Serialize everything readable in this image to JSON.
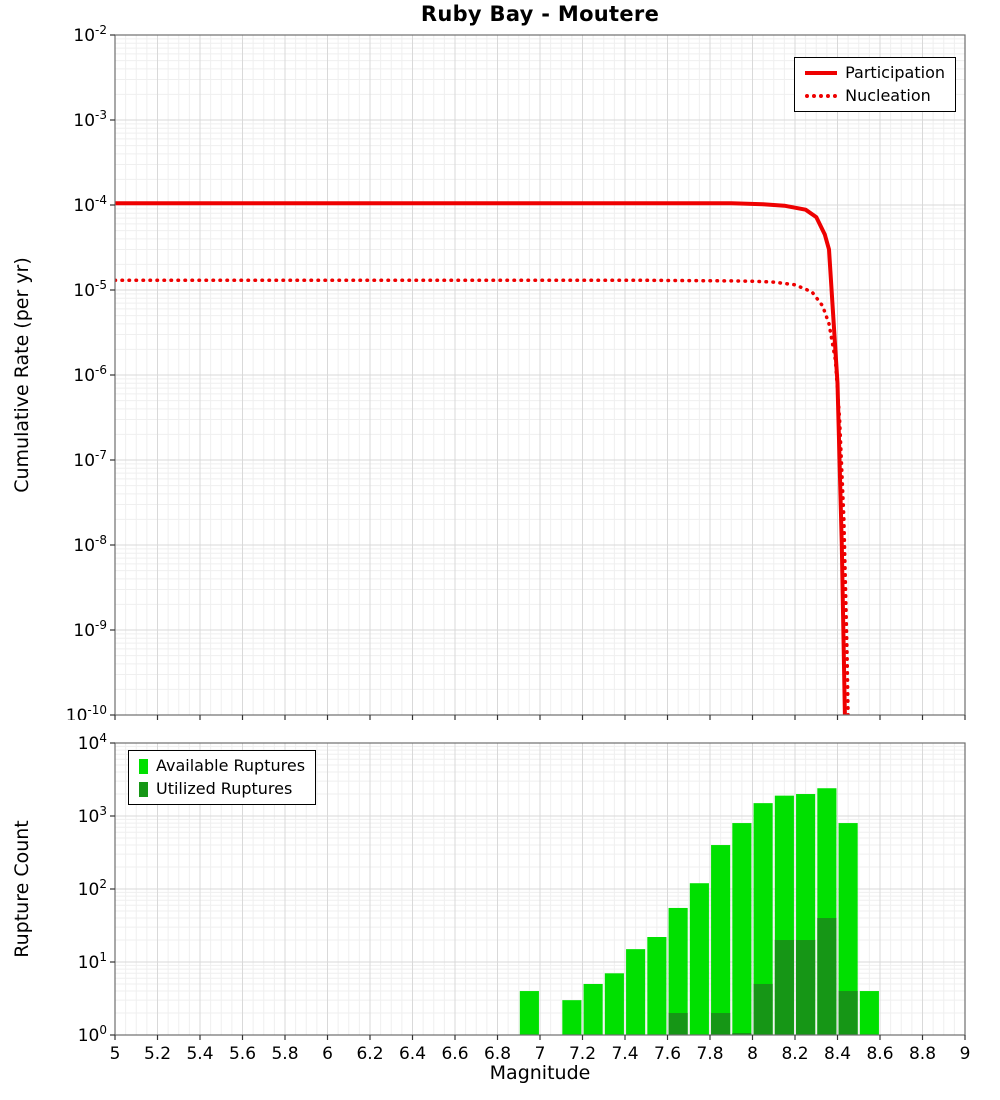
{
  "title": "Ruby Bay - Moutere",
  "chart_data": [
    {
      "type": "line",
      "title": "Ruby Bay - Moutere",
      "xlabel": "Magnitude",
      "ylabel": "Cumulative Rate (per yr)",
      "xlim": [
        5,
        9
      ],
      "x_tick_step": 0.2,
      "yscale": "log",
      "ylim_exp": [
        -10,
        -2
      ],
      "grid": true,
      "legend_position": "top-right",
      "series": [
        {
          "name": "Participation",
          "style": "solid",
          "color": "#ee0000",
          "points": [
            [
              5.0,
              0.000105
            ],
            [
              5.5,
              0.000105
            ],
            [
              6.0,
              0.000105
            ],
            [
              6.5,
              0.000105
            ],
            [
              7.0,
              0.000105
            ],
            [
              7.5,
              0.000105
            ],
            [
              7.9,
              0.000105
            ],
            [
              8.05,
              0.000102
            ],
            [
              8.15,
              9.8e-05
            ],
            [
              8.25,
              8.8e-05
            ],
            [
              8.3,
              7.2e-05
            ],
            [
              8.34,
              4.5e-05
            ],
            [
              8.36,
              3e-05
            ],
            [
              8.4,
              8e-07
            ],
            [
              8.42,
              1e-08
            ],
            [
              8.435,
              1e-10
            ],
            [
              8.44,
              3e-11
            ]
          ]
        },
        {
          "name": "Nucleation",
          "style": "dotted",
          "color": "#ee0000",
          "points": [
            [
              5.0,
              1.3e-05
            ],
            [
              5.5,
              1.3e-05
            ],
            [
              6.0,
              1.3e-05
            ],
            [
              6.5,
              1.3e-05
            ],
            [
              7.0,
              1.3e-05
            ],
            [
              7.5,
              1.3e-05
            ],
            [
              7.9,
              1.28e-05
            ],
            [
              8.0,
              1.27e-05
            ],
            [
              8.1,
              1.24e-05
            ],
            [
              8.2,
              1.15e-05
            ],
            [
              8.28,
              9.5e-06
            ],
            [
              8.33,
              6.5e-06
            ],
            [
              8.36,
              4e-06
            ],
            [
              8.39,
              1.5e-06
            ],
            [
              8.41,
              3e-07
            ],
            [
              8.43,
              2e-08
            ],
            [
              8.445,
              5e-10
            ],
            [
              8.45,
              1e-10
            ]
          ]
        }
      ]
    },
    {
      "type": "bar",
      "xlabel": "Magnitude",
      "ylabel": "Rupture Count",
      "xlim": [
        5,
        9
      ],
      "x_tick_step": 0.2,
      "yscale": "log",
      "ylim_exp": [
        0,
        4
      ],
      "grid": true,
      "bar_width": 0.09,
      "legend_position": "top-left",
      "legend": [
        {
          "label": "Available Ruptures",
          "color": "#00e000"
        },
        {
          "label": "Utilized Ruptures",
          "color": "#169616"
        }
      ],
      "bars": [
        {
          "m": 6.95,
          "available": 4,
          "utilized": 0
        },
        {
          "m": 7.15,
          "available": 3,
          "utilized": 0
        },
        {
          "m": 7.25,
          "available": 5,
          "utilized": 0
        },
        {
          "m": 7.35,
          "available": 7,
          "utilized": 0
        },
        {
          "m": 7.45,
          "available": 15,
          "utilized": 0
        },
        {
          "m": 7.55,
          "available": 22,
          "utilized": 0
        },
        {
          "m": 7.65,
          "available": 55,
          "utilized": 2
        },
        {
          "m": 7.75,
          "available": 120,
          "utilized": 0
        },
        {
          "m": 7.85,
          "available": 400,
          "utilized": 2
        },
        {
          "m": 7.95,
          "available": 800,
          "utilized": 1
        },
        {
          "m": 8.05,
          "available": 1500,
          "utilized": 5
        },
        {
          "m": 8.15,
          "available": 1900,
          "utilized": 20
        },
        {
          "m": 8.25,
          "available": 2000,
          "utilized": 20
        },
        {
          "m": 8.35,
          "available": 2400,
          "utilized": 40
        },
        {
          "m": 8.45,
          "available": 800,
          "utilized": 4
        },
        {
          "m": 8.55,
          "available": 4,
          "utilized": 0
        }
      ]
    }
  ]
}
